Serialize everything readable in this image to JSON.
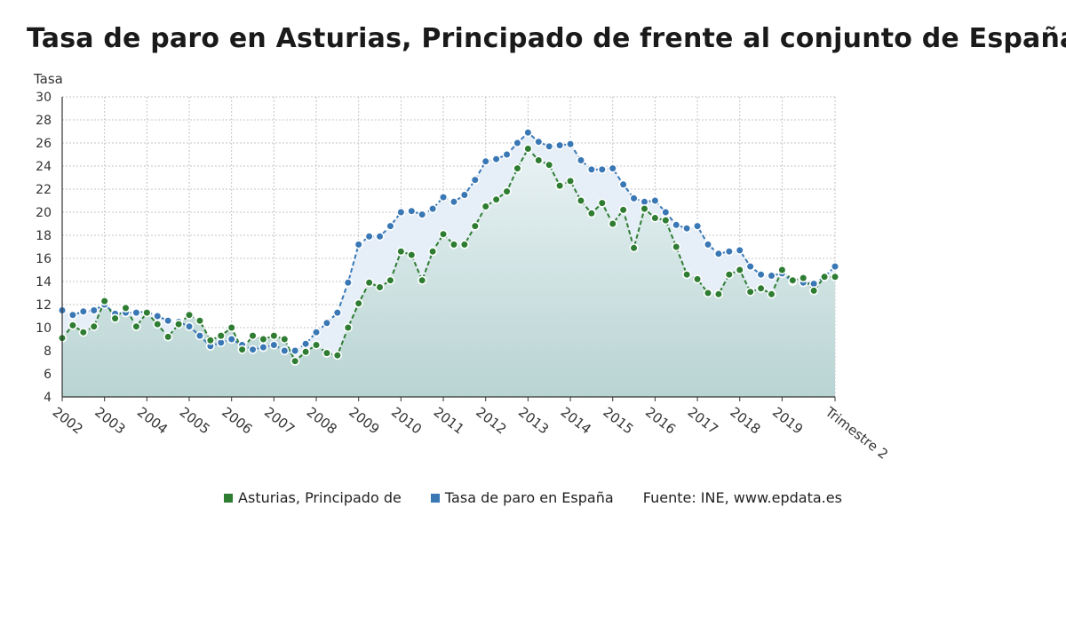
{
  "title": "Tasa de paro en Asturias, Principado de frente al conjunto de España",
  "source": "Fuente: INE, www.epdata.es",
  "colors": {
    "asturias": "#2e7d32",
    "espana": "#3a78b5",
    "area_bottom": "#b8d4d2",
    "area_top": "#e9f2f4",
    "band": "#e6eef8"
  },
  "chart_data": {
    "type": "line",
    "title": "Tasa de paro en Asturias, Principado de frente al conjunto de España",
    "ylabel": "Tasa",
    "xlabel": "",
    "ylim": [
      4,
      30
    ],
    "yticks": [
      4,
      6,
      8,
      10,
      12,
      14,
      16,
      18,
      20,
      22,
      24,
      26,
      28,
      30
    ],
    "grid": true,
    "legend_position": "bottom",
    "x_tick_labels": [
      "2002",
      "2003",
      "2004",
      "2005",
      "2006",
      "2007",
      "2008",
      "2009",
      "2010",
      "2011",
      "2012",
      "2013",
      "2014",
      "2015",
      "2016",
      "2017",
      "2018",
      "2019",
      "Trimestre 2"
    ],
    "x": [
      "2002T1",
      "2002T2",
      "2002T3",
      "2002T4",
      "2003T1",
      "2003T2",
      "2003T3",
      "2003T4",
      "2004T1",
      "2004T2",
      "2004T3",
      "2004T4",
      "2005T1",
      "2005T2",
      "2005T3",
      "2005T4",
      "2006T1",
      "2006T2",
      "2006T3",
      "2006T4",
      "2007T1",
      "2007T2",
      "2007T3",
      "2007T4",
      "2008T1",
      "2008T2",
      "2008T3",
      "2008T4",
      "2009T1",
      "2009T2",
      "2009T3",
      "2009T4",
      "2010T1",
      "2010T2",
      "2010T3",
      "2010T4",
      "2011T1",
      "2011T2",
      "2011T3",
      "2011T4",
      "2012T1",
      "2012T2",
      "2012T3",
      "2012T4",
      "2013T1",
      "2013T2",
      "2013T3",
      "2013T4",
      "2014T1",
      "2014T2",
      "2014T3",
      "2014T4",
      "2015T1",
      "2015T2",
      "2015T3",
      "2015T4",
      "2016T1",
      "2016T2",
      "2016T3",
      "2016T4",
      "2017T1",
      "2017T2",
      "2017T3",
      "2017T4",
      "2018T1",
      "2018T2",
      "2018T3",
      "2018T4",
      "2019T1",
      "2019T2",
      "2019T3",
      "2019T4",
      "2020T1",
      "2020T2"
    ],
    "series": [
      {
        "name": "Asturias, Principado de",
        "values": [
          9.1,
          10.2,
          9.6,
          10.1,
          12.3,
          10.8,
          11.7,
          10.1,
          11.3,
          10.3,
          9.2,
          10.3,
          11.1,
          10.6,
          8.9,
          9.3,
          10.0,
          8.1,
          9.3,
          9.0,
          9.3,
          9.0,
          7.1,
          7.9,
          8.5,
          7.8,
          7.6,
          10.0,
          12.1,
          13.9,
          13.5,
          14.1,
          16.6,
          16.3,
          14.1,
          16.6,
          18.1,
          17.2,
          17.2,
          18.8,
          20.5,
          21.1,
          21.8,
          23.8,
          25.5,
          24.5,
          24.1,
          22.3,
          22.7,
          21.0,
          19.9,
          20.8,
          19.0,
          20.2,
          16.9,
          20.3,
          19.5,
          19.3,
          17.0,
          14.6,
          14.2,
          13.0,
          12.9,
          14.6,
          15.0,
          13.1,
          13.4,
          12.9,
          15.0,
          14.1,
          14.3,
          13.2,
          14.4,
          14.4
        ]
      },
      {
        "name": "Tasa de paro en España",
        "values": [
          11.5,
          11.1,
          11.4,
          11.5,
          12.0,
          11.2,
          11.3,
          11.3,
          11.4,
          11.0,
          10.6,
          10.5,
          10.1,
          9.3,
          8.4,
          8.7,
          9.0,
          8.5,
          8.1,
          8.3,
          8.5,
          8.0,
          8.0,
          8.6,
          9.6,
          10.4,
          11.3,
          13.9,
          17.2,
          17.9,
          17.9,
          18.8,
          20.0,
          20.1,
          19.8,
          20.3,
          21.3,
          20.9,
          21.5,
          22.8,
          24.4,
          24.6,
          25.0,
          26.0,
          26.9,
          26.1,
          25.7,
          25.8,
          25.9,
          24.5,
          23.7,
          23.7,
          23.8,
          22.4,
          21.2,
          20.9,
          21.0,
          20.0,
          18.9,
          18.6,
          18.8,
          17.2,
          16.4,
          16.6,
          16.7,
          15.3,
          14.6,
          14.5,
          14.7,
          14.0,
          13.9,
          13.8,
          14.4,
          15.3
        ]
      }
    ]
  }
}
